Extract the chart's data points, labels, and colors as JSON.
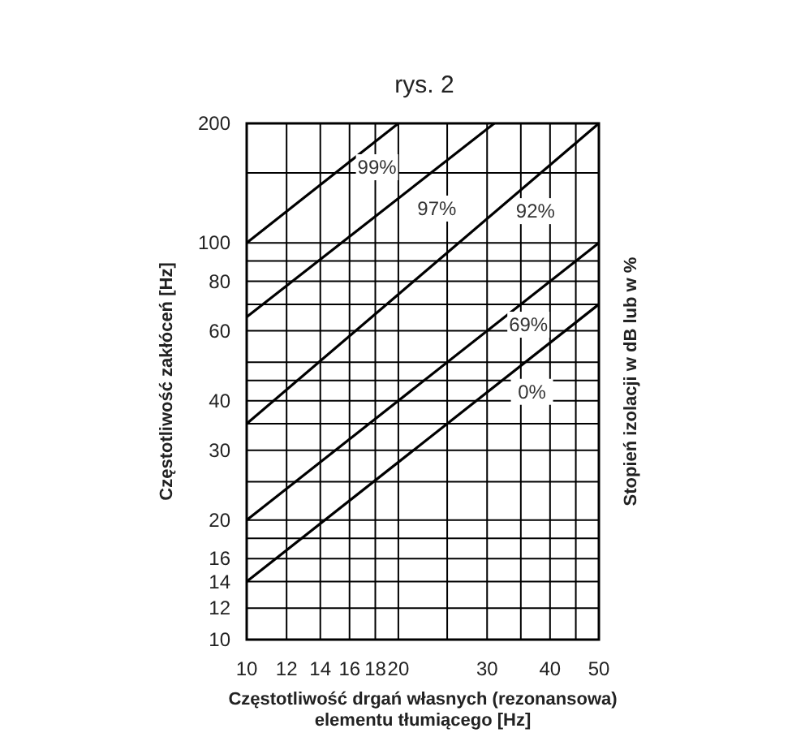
{
  "chart_data": {
    "type": "line",
    "title": "rys. 2",
    "xlabel": "Częstotliwość drgań własnych (rezonansowa)\nelementu tłumiącego [Hz]",
    "ylabel": "Częstotliwość zakłóceń [Hz]",
    "y2label": "Stopień izolacji w dB lub w %",
    "xlim": [
      10,
      50
    ],
    "ylim": [
      10,
      200
    ],
    "log": "xy",
    "xticks": [
      10,
      12,
      14,
      16,
      18,
      20,
      {
        "value": 25,
        "label": null
      },
      30,
      {
        "value": 35,
        "label": null
      },
      40,
      {
        "value": 45,
        "label": null
      },
      50
    ],
    "yticks": [
      10,
      12,
      14,
      16,
      {
        "value": 18,
        "label": null
      },
      20,
      {
        "value": 25,
        "label": null
      },
      30,
      {
        "value": 35,
        "label": null
      },
      40,
      {
        "value": 45,
        "label": null
      },
      {
        "value": 50,
        "label": null
      },
      60,
      {
        "value": 70,
        "label": null
      },
      80,
      {
        "value": 90,
        "label": null
      },
      100,
      {
        "value": 150,
        "label": null
      },
      200
    ],
    "grid": true,
    "legend": false,
    "marker": "none",
    "line_style": "solid",
    "series": [
      {
        "name": "99%",
        "color": "#000000",
        "x": [
          10,
          20
        ],
        "values": [
          100,
          200
        ]
      },
      {
        "name": "97%",
        "color": "#000000",
        "x": [
          10,
          31
        ],
        "values": [
          65,
          200
        ]
      },
      {
        "name": "92%",
        "color": "#000000",
        "x": [
          10,
          50
        ],
        "values": [
          35,
          200
        ]
      },
      {
        "name": "69%",
        "color": "#000000",
        "x": [
          10,
          50
        ],
        "values": [
          20,
          100
        ]
      },
      {
        "name": "0%",
        "color": "#000000",
        "x": [
          10,
          50
        ],
        "values": [
          14,
          70
        ]
      }
    ]
  }
}
